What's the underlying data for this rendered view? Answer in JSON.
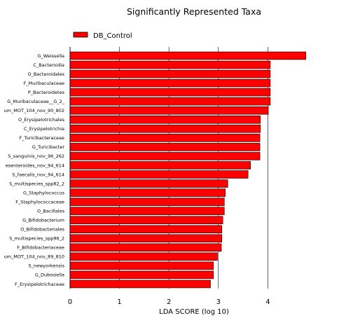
{
  "chart_data": {
    "type": "bar",
    "orientation": "horizontal",
    "title": "Significantly Represented Taxa",
    "xlabel": "LDA SCORE (log 10)",
    "ylabel": "",
    "xlim": [
      0,
      4.9
    ],
    "xticks": [
      0,
      1,
      2,
      3,
      4
    ],
    "grid": "vertical",
    "legend_placement": "top-left",
    "series": [
      {
        "name": "DB_Control",
        "color": "#ff0000",
        "edge_color": "#000000"
      }
    ],
    "categories": [
      "G_Weissella",
      "C_Bacteroidia",
      "O_Bacteroidales",
      "F_Muribaculaceae",
      "P_Bacteroidetes",
      "G_Muribaculaceae__G_2_",
      "um_MOT_104_nov_90_802",
      "O_Erysipelotrichales",
      "C_Erysipelotrichia",
      "F_Turicibacteraceae",
      "G_Turicibacter",
      "S_sanguinis_nov_96_262",
      "esenteroides_nov_94_614",
      "S_faecalis_nov_94_614",
      "S_multispecies_spp82_2",
      "G_Staphylococcus",
      "F_Staphylococcaceae",
      "O_Bacillales",
      "G_Bifidobacterium",
      "O_Bifidobacteriales",
      "S_multispecies_spp96_2",
      "F_Bifidobacteriaceae",
      "um_MOT_104_nov_89_810",
      "S_newyorkensis",
      "G_Dubosiella",
      "F_Erysipelotrichaceae"
    ],
    "values": [
      4.77,
      4.05,
      4.05,
      4.05,
      4.05,
      4.05,
      4.01,
      3.85,
      3.85,
      3.84,
      3.84,
      3.84,
      3.65,
      3.6,
      3.19,
      3.14,
      3.12,
      3.12,
      3.09,
      3.07,
      3.07,
      3.06,
      2.98,
      2.9,
      2.9,
      2.84
    ]
  }
}
